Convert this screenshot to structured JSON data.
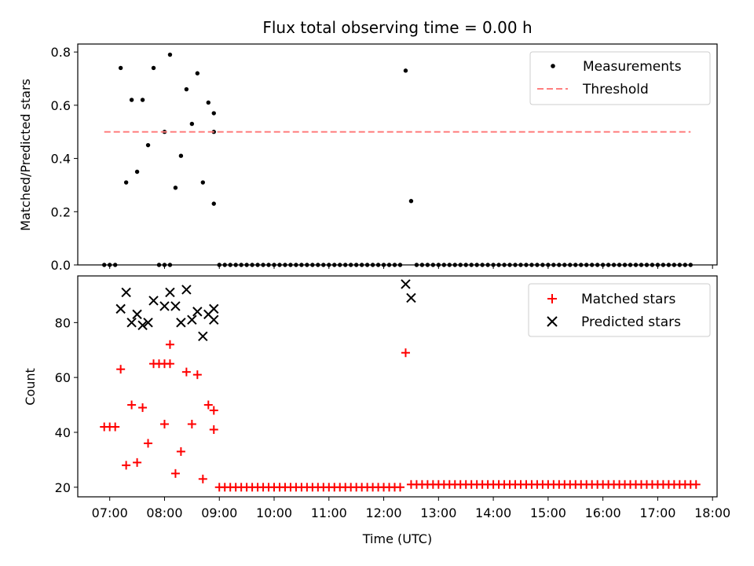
{
  "figure": {
    "title": "Flux total observing time = 0.00 h",
    "xlabel": "Time (UTC)"
  },
  "colors": {
    "measurement": "#000000",
    "threshold": "#ff7f7f",
    "matched": "#ff0000",
    "predicted": "#000000"
  },
  "chart_data": [
    {
      "type": "scatter",
      "ylabel": "Matched/Predicted stars",
      "xlim": [
        "06:25",
        "18:05"
      ],
      "ylim": [
        0,
        0.83
      ],
      "yticks": [
        0.0,
        0.2,
        0.4,
        0.6,
        0.8
      ],
      "ytick_labels": [
        "0.0",
        "0.2",
        "0.4",
        "0.6",
        "0.8"
      ],
      "legend": {
        "placement": "top-right",
        "entries": [
          "Measurements",
          "Threshold"
        ]
      },
      "grid": false,
      "series": [
        {
          "name": "Measurements",
          "kind": "points",
          "points": [
            [
              "06:54",
              0
            ],
            [
              "07:00",
              0
            ],
            [
              "07:06",
              0
            ],
            [
              "07:12",
              0.74
            ],
            [
              "07:18",
              0.31
            ],
            [
              "07:24",
              0.62
            ],
            [
              "07:30",
              0.35
            ],
            [
              "07:36",
              0.62
            ],
            [
              "07:42",
              0.45
            ],
            [
              "07:48",
              0.74
            ],
            [
              "07:54",
              0
            ],
            [
              "08:00",
              0
            ],
            [
              "08:06",
              0
            ],
            [
              "08:00",
              0.5
            ],
            [
              "08:06",
              0.79
            ],
            [
              "08:12",
              0.29
            ],
            [
              "08:18",
              0.41
            ],
            [
              "08:24",
              0.66
            ],
            [
              "08:30",
              0.53
            ],
            [
              "08:36",
              0.72
            ],
            [
              "08:42",
              0.31
            ],
            [
              "08:48",
              0.61
            ],
            [
              "08:54",
              0.57
            ],
            [
              "08:54",
              0.5
            ],
            [
              "08:54",
              0.23
            ],
            [
              "09:00",
              0
            ],
            [
              "09:06",
              0
            ],
            [
              "09:12",
              0
            ],
            [
              "09:18",
              0
            ],
            [
              "09:24",
              0
            ],
            [
              "09:30",
              0
            ],
            [
              "09:36",
              0
            ],
            [
              "09:42",
              0
            ],
            [
              "09:48",
              0
            ],
            [
              "09:54",
              0
            ],
            [
              "10:00",
              0
            ],
            [
              "10:06",
              0
            ],
            [
              "10:12",
              0
            ],
            [
              "10:18",
              0
            ],
            [
              "10:24",
              0
            ],
            [
              "10:30",
              0
            ],
            [
              "10:36",
              0
            ],
            [
              "10:42",
              0
            ],
            [
              "10:48",
              0
            ],
            [
              "10:54",
              0
            ],
            [
              "11:00",
              0
            ],
            [
              "11:06",
              0
            ],
            [
              "11:12",
              0
            ],
            [
              "11:18",
              0
            ],
            [
              "11:24",
              0
            ],
            [
              "11:30",
              0
            ],
            [
              "11:36",
              0
            ],
            [
              "11:42",
              0
            ],
            [
              "11:48",
              0
            ],
            [
              "11:54",
              0
            ],
            [
              "12:00",
              0
            ],
            [
              "12:06",
              0
            ],
            [
              "12:12",
              0
            ],
            [
              "12:18",
              0
            ],
            [
              "12:24",
              0.73
            ],
            [
              "12:30",
              0.24
            ],
            [
              "12:36",
              0
            ],
            [
              "12:42",
              0
            ],
            [
              "12:48",
              0
            ],
            [
              "12:54",
              0
            ],
            [
              "13:00",
              0
            ],
            [
              "13:06",
              0
            ],
            [
              "13:12",
              0
            ],
            [
              "13:18",
              0
            ],
            [
              "13:24",
              0
            ],
            [
              "13:30",
              0
            ],
            [
              "13:36",
              0
            ],
            [
              "13:42",
              0
            ],
            [
              "13:48",
              0
            ],
            [
              "13:54",
              0
            ],
            [
              "14:00",
              0
            ],
            [
              "14:06",
              0
            ],
            [
              "14:12",
              0
            ],
            [
              "14:18",
              0
            ],
            [
              "14:24",
              0
            ],
            [
              "14:30",
              0
            ],
            [
              "14:36",
              0
            ],
            [
              "14:42",
              0
            ],
            [
              "14:48",
              0
            ],
            [
              "14:54",
              0
            ],
            [
              "15:00",
              0
            ],
            [
              "15:06",
              0
            ],
            [
              "15:12",
              0
            ],
            [
              "15:18",
              0
            ],
            [
              "15:24",
              0
            ],
            [
              "15:30",
              0
            ],
            [
              "15:36",
              0
            ],
            [
              "15:42",
              0
            ],
            [
              "15:48",
              0
            ],
            [
              "15:54",
              0
            ],
            [
              "16:00",
              0
            ],
            [
              "16:06",
              0
            ],
            [
              "16:12",
              0
            ],
            [
              "16:18",
              0
            ],
            [
              "16:24",
              0
            ],
            [
              "16:30",
              0
            ],
            [
              "16:36",
              0
            ],
            [
              "16:42",
              0
            ],
            [
              "16:48",
              0
            ],
            [
              "16:54",
              0
            ],
            [
              "17:00",
              0
            ],
            [
              "17:06",
              0
            ],
            [
              "17:12",
              0
            ],
            [
              "17:18",
              0
            ],
            [
              "17:24",
              0
            ],
            [
              "17:30",
              0
            ],
            [
              "17:36",
              0
            ]
          ]
        },
        {
          "name": "Threshold",
          "kind": "dashed-line",
          "points": [
            [
              "06:54",
              0.5
            ],
            [
              "17:36",
              0.5
            ]
          ]
        }
      ]
    },
    {
      "type": "scatter",
      "ylabel": "Count",
      "xlim": [
        "06:25",
        "18:05"
      ],
      "ylim": [
        16.5,
        97
      ],
      "yticks": [
        20,
        40,
        60,
        80
      ],
      "ytick_labels": [
        "20",
        "40",
        "60",
        "80"
      ],
      "xticks": [
        "07:00",
        "08:00",
        "09:00",
        "10:00",
        "11:00",
        "12:00",
        "13:00",
        "14:00",
        "15:00",
        "16:00",
        "17:00",
        "18:00"
      ],
      "legend": {
        "placement": "top-right",
        "entries": [
          "Matched stars",
          "Predicted stars"
        ]
      },
      "grid": false,
      "series": [
        {
          "name": "Matched stars",
          "kind": "plus",
          "points": [
            [
              "06:54",
              42
            ],
            [
              "07:00",
              42
            ],
            [
              "07:06",
              42
            ],
            [
              "07:12",
              63
            ],
            [
              "07:18",
              28
            ],
            [
              "07:24",
              50
            ],
            [
              "07:30",
              29
            ],
            [
              "07:36",
              49
            ],
            [
              "07:42",
              36
            ],
            [
              "07:48",
              65
            ],
            [
              "07:54",
              65
            ],
            [
              "08:00",
              65
            ],
            [
              "08:06",
              65
            ],
            [
              "08:00",
              43
            ],
            [
              "08:06",
              72
            ],
            [
              "08:12",
              25
            ],
            [
              "08:18",
              33
            ],
            [
              "08:24",
              62
            ],
            [
              "08:30",
              43
            ],
            [
              "08:36",
              61
            ],
            [
              "08:42",
              23
            ],
            [
              "08:48",
              50
            ],
            [
              "08:54",
              48
            ],
            [
              "08:54",
              41
            ],
            [
              "09:00",
              20
            ],
            [
              "09:06",
              20
            ],
            [
              "09:12",
              20
            ],
            [
              "09:18",
              20
            ],
            [
              "09:24",
              20
            ],
            [
              "09:30",
              20
            ],
            [
              "09:36",
              20
            ],
            [
              "09:42",
              20
            ],
            [
              "09:48",
              20
            ],
            [
              "09:54",
              20
            ],
            [
              "10:00",
              20
            ],
            [
              "10:06",
              20
            ],
            [
              "10:12",
              20
            ],
            [
              "10:18",
              20
            ],
            [
              "10:24",
              20
            ],
            [
              "10:30",
              20
            ],
            [
              "10:36",
              20
            ],
            [
              "10:42",
              20
            ],
            [
              "10:48",
              20
            ],
            [
              "10:54",
              20
            ],
            [
              "11:00",
              20
            ],
            [
              "11:06",
              20
            ],
            [
              "11:12",
              20
            ],
            [
              "11:18",
              20
            ],
            [
              "11:24",
              20
            ],
            [
              "11:30",
              20
            ],
            [
              "11:36",
              20
            ],
            [
              "11:42",
              20
            ],
            [
              "11:48",
              20
            ],
            [
              "11:54",
              20
            ],
            [
              "12:00",
              20
            ],
            [
              "12:06",
              20
            ],
            [
              "12:12",
              20
            ],
            [
              "12:18",
              20
            ],
            [
              "12:24",
              69
            ],
            [
              "12:30",
              21
            ],
            [
              "12:36",
              21
            ],
            [
              "12:42",
              21
            ],
            [
              "12:48",
              21
            ],
            [
              "12:54",
              21
            ],
            [
              "13:00",
              21
            ],
            [
              "13:06",
              21
            ],
            [
              "13:12",
              21
            ],
            [
              "13:18",
              21
            ],
            [
              "13:24",
              21
            ],
            [
              "13:30",
              21
            ],
            [
              "13:36",
              21
            ],
            [
              "13:42",
              21
            ],
            [
              "13:48",
              21
            ],
            [
              "13:54",
              21
            ],
            [
              "14:00",
              21
            ],
            [
              "14:06",
              21
            ],
            [
              "14:12",
              21
            ],
            [
              "14:18",
              21
            ],
            [
              "14:24",
              21
            ],
            [
              "14:30",
              21
            ],
            [
              "14:36",
              21
            ],
            [
              "14:42",
              21
            ],
            [
              "14:48",
              21
            ],
            [
              "14:54",
              21
            ],
            [
              "15:00",
              21
            ],
            [
              "15:06",
              21
            ],
            [
              "15:12",
              21
            ],
            [
              "15:18",
              21
            ],
            [
              "15:24",
              21
            ],
            [
              "15:30",
              21
            ],
            [
              "15:36",
              21
            ],
            [
              "15:42",
              21
            ],
            [
              "15:48",
              21
            ],
            [
              "15:54",
              21
            ],
            [
              "16:00",
              21
            ],
            [
              "16:06",
              21
            ],
            [
              "16:12",
              21
            ],
            [
              "16:18",
              21
            ],
            [
              "16:24",
              21
            ],
            [
              "16:30",
              21
            ],
            [
              "16:36",
              21
            ],
            [
              "16:42",
              21
            ],
            [
              "16:48",
              21
            ],
            [
              "16:54",
              21
            ],
            [
              "17:00",
              21
            ],
            [
              "17:06",
              21
            ],
            [
              "17:12",
              21
            ],
            [
              "17:18",
              21
            ],
            [
              "17:24",
              21
            ],
            [
              "17:30",
              21
            ],
            [
              "17:36",
              21
            ],
            [
              "17:42",
              21
            ]
          ]
        },
        {
          "name": "Predicted stars",
          "kind": "x",
          "points": [
            [
              "07:12",
              85
            ],
            [
              "07:18",
              91
            ],
            [
              "07:24",
              80
            ],
            [
              "07:30",
              83
            ],
            [
              "07:36",
              79
            ],
            [
              "07:42",
              80
            ],
            [
              "07:48",
              88
            ],
            [
              "08:00",
              86
            ],
            [
              "08:06",
              91
            ],
            [
              "08:12",
              86
            ],
            [
              "08:18",
              80
            ],
            [
              "08:24",
              92
            ],
            [
              "08:30",
              81
            ],
            [
              "08:36",
              84
            ],
            [
              "08:42",
              75
            ],
            [
              "08:48",
              83
            ],
            [
              "08:54",
              81
            ],
            [
              "08:54",
              85
            ],
            [
              "12:24",
              94
            ],
            [
              "12:30",
              89
            ]
          ]
        }
      ]
    }
  ]
}
